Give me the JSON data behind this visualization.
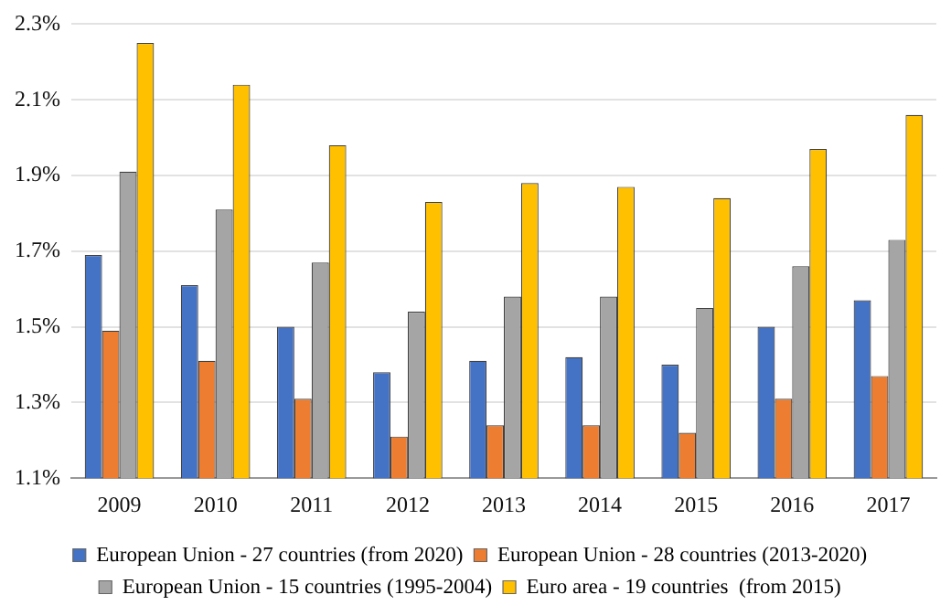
{
  "chart_data": {
    "type": "bar",
    "categories": [
      "2009",
      "2010",
      "2011",
      "2012",
      "2013",
      "2014",
      "2015",
      "2016",
      "2017"
    ],
    "series": [
      {
        "name": "European Union - 27 countries (from 2020)",
        "color": "#4472c4",
        "values": [
          1.69,
          1.61,
          1.5,
          1.38,
          1.41,
          1.42,
          1.4,
          1.5,
          1.57
        ]
      },
      {
        "name": "European Union - 28 countries (2013-2020)",
        "color": "#ed7d31",
        "values": [
          1.49,
          1.41,
          1.31,
          1.21,
          1.24,
          1.24,
          1.22,
          1.31,
          1.37
        ]
      },
      {
        "name": "European Union - 15 countries (1995-2004)",
        "color": "#a5a5a5",
        "values": [
          1.91,
          1.81,
          1.67,
          1.54,
          1.58,
          1.58,
          1.55,
          1.66,
          1.73
        ]
      },
      {
        "name": "Euro area - 19 countries  (from 2015)",
        "color": "#ffc000",
        "values": [
          2.25,
          2.14,
          1.98,
          1.83,
          1.88,
          1.87,
          1.84,
          1.97,
          2.06
        ]
      }
    ],
    "ylim": [
      1.1,
      2.3
    ],
    "yticks": [
      {
        "value": 1.1,
        "label": "1.1%"
      },
      {
        "value": 1.3,
        "label": "1.3%"
      },
      {
        "value": 1.5,
        "label": "1.5%"
      },
      {
        "value": 1.7,
        "label": "1.7%"
      },
      {
        "value": 1.9,
        "label": "1.9%"
      },
      {
        "value": 2.1,
        "label": "2.1%"
      },
      {
        "value": 2.3,
        "label": "2.3%"
      }
    ],
    "grid": "y",
    "legend": "bottom"
  }
}
